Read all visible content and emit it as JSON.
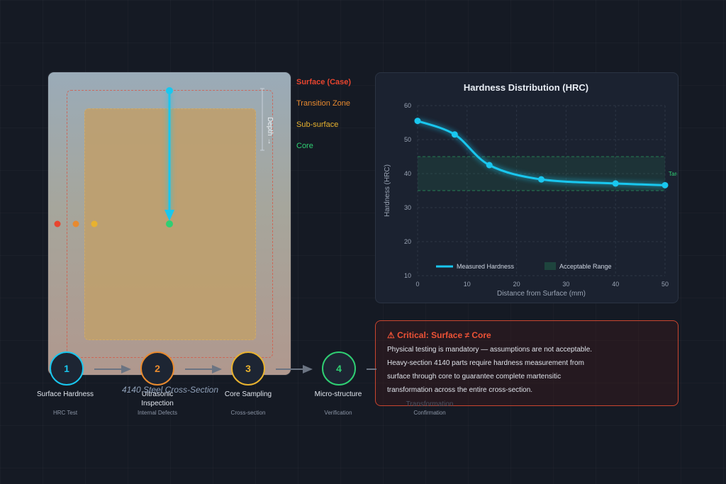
{
  "cross_section": {
    "caption": "4140 Steel Cross-Section",
    "depth_label": "Depth →",
    "legend": [
      {
        "label": "Surface (Case)",
        "color": "#e8452f",
        "bold": true
      },
      {
        "label": "Transition Zone",
        "color": "#e88a2f",
        "bold": false
      },
      {
        "label": "Sub-surface",
        "color": "#e8b22f",
        "bold": false
      },
      {
        "label": "Core",
        "color": "#2fcf73",
        "bold": false
      }
    ],
    "probe_color": "#19c7ef"
  },
  "chart_data": {
    "type": "line",
    "title": "Hardness Distribution (HRC)",
    "xlabel": "Distance from Surface (mm)",
    "ylabel": "Hardness (HRC)",
    "xlim": [
      0,
      50
    ],
    "ylim": [
      10,
      60
    ],
    "x_ticks": [
      0,
      10,
      20,
      30,
      40,
      50
    ],
    "y_ticks": [
      10,
      20,
      30,
      40,
      50,
      60
    ],
    "grid": true,
    "series": [
      {
        "name": "Measured Hardness",
        "color": "#19c7ef",
        "x": [
          0,
          7.5,
          14.5,
          25,
          40,
          50
        ],
        "y": [
          55.5,
          51.5,
          42.5,
          38.3,
          37.1,
          36.6
        ]
      }
    ],
    "band": {
      "name": "Acceptable Range",
      "y": [
        35,
        45
      ],
      "annotation": "Target Range"
    },
    "legend_position": "bottom"
  },
  "steps": [
    {
      "num": "1",
      "title": "Surface Hardness",
      "sub": "HRC Test",
      "color": "#19c7ef"
    },
    {
      "num": "2",
      "title": "Ultrasonic Inspection",
      "sub": "Internal Defects",
      "color": "#e88a2f"
    },
    {
      "num": "3",
      "title": "Core Sampling",
      "sub": "Cross-section",
      "color": "#e8b22f"
    },
    {
      "num": "4",
      "title": "Micro-structure",
      "sub": "Verification",
      "color": "#2fcf73"
    },
    {
      "num": "",
      "title": "Transformation",
      "sub": "Confirmation",
      "color": "#888888"
    }
  ],
  "critical": {
    "title": "⚠ Critical: Surface ≠ Core",
    "lines": [
      "Physical testing is mandatory — assumptions are not acceptable.",
      "Heavy-section 4140 parts require hardness measurement from",
      "surface through core to guarantee complete martensitic",
      "transformation across the entire cross-section."
    ]
  }
}
